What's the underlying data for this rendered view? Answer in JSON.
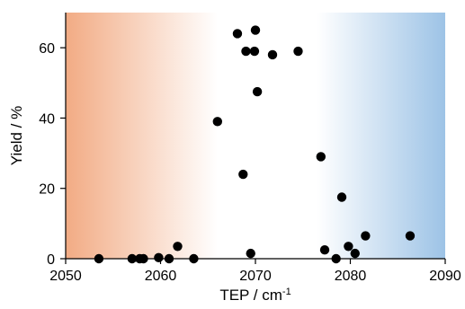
{
  "chart_data": {
    "type": "scatter",
    "title": "",
    "xlabel": "TEP / cm",
    "xlabel_superscript": "-1",
    "ylabel": "Yield / %",
    "xlim": [
      2050,
      2090
    ],
    "ylim": [
      0,
      70
    ],
    "xticks": [
      "2050",
      "2060",
      "2070",
      "2080",
      "2090"
    ],
    "yticks": [
      "0",
      "20",
      "40",
      "60"
    ],
    "grid": false,
    "legend": "none",
    "background_regions": [
      {
        "x_from": 2050,
        "x_to": 2066,
        "color_strong": "#f2ab84",
        "color_weak": "#ffffff"
      },
      {
        "x_from": 2076.5,
        "x_to": 2090,
        "color_weak": "#ffffff",
        "color_strong": "#9dc3e6"
      }
    ],
    "marker_color": "#000000",
    "points": [
      {
        "x": 2053.5,
        "y": 0
      },
      {
        "x": 2057.0,
        "y": 0
      },
      {
        "x": 2057.8,
        "y": 0
      },
      {
        "x": 2058.2,
        "y": 0
      },
      {
        "x": 2059.8,
        "y": 0.3
      },
      {
        "x": 2060.9,
        "y": 0
      },
      {
        "x": 2061.8,
        "y": 3.5
      },
      {
        "x": 2063.5,
        "y": 0
      },
      {
        "x": 2066.0,
        "y": 39
      },
      {
        "x": 2068.1,
        "y": 64
      },
      {
        "x": 2068.7,
        "y": 24
      },
      {
        "x": 2069.0,
        "y": 59
      },
      {
        "x": 2069.5,
        "y": 1.5
      },
      {
        "x": 2069.9,
        "y": 59
      },
      {
        "x": 2070.0,
        "y": 65
      },
      {
        "x": 2070.2,
        "y": 47.5
      },
      {
        "x": 2071.8,
        "y": 58
      },
      {
        "x": 2074.5,
        "y": 59
      },
      {
        "x": 2076.9,
        "y": 29
      },
      {
        "x": 2077.3,
        "y": 2.5
      },
      {
        "x": 2078.5,
        "y": 0
      },
      {
        "x": 2079.1,
        "y": 17.5
      },
      {
        "x": 2079.8,
        "y": 3.5
      },
      {
        "x": 2080.5,
        "y": 1.5
      },
      {
        "x": 2081.6,
        "y": 6.5
      },
      {
        "x": 2086.3,
        "y": 6.5
      }
    ]
  }
}
